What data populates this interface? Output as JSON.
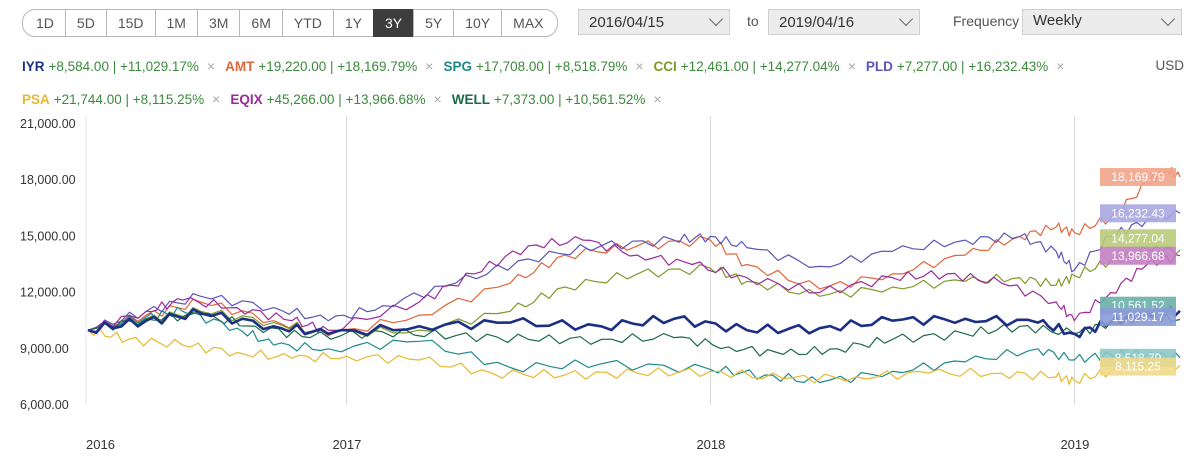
{
  "range_buttons": [
    "1D",
    "5D",
    "15D",
    "1M",
    "3M",
    "6M",
    "YTD",
    "1Y",
    "3Y",
    "5Y",
    "10Y",
    "MAX"
  ],
  "active_range": "3Y",
  "date_from": "2016/04/15",
  "date_to": "2019/04/16",
  "to_label": "to",
  "frequency_label": "Frequency",
  "frequency_value": "Weekly",
  "currency": "USD",
  "legend": [
    {
      "symbol": "IYR",
      "value": "+8,584.00 | +11,029.17%",
      "color": "#1b2f85"
    },
    {
      "symbol": "AMT",
      "value": "+19,220.00 | +18,169.79%",
      "color": "#e0653a"
    },
    {
      "symbol": "SPG",
      "value": "+17,708.00 | +8,518.79%",
      "color": "#1d8a8a"
    },
    {
      "symbol": "CCI",
      "value": "+12,461.00 | +14,277.04%",
      "color": "#7f9a2a"
    },
    {
      "symbol": "PLD",
      "value": "+7,277.00 | +16,232.43%",
      "color": "#5a55b8"
    },
    {
      "symbol": "PSA",
      "value": "+21,744.00 | +8,115.25%",
      "color": "#e8b830"
    },
    {
      "symbol": "EQIX",
      "value": "+45,266.00 | +13,966.68%",
      "color": "#9b2a9b"
    },
    {
      "symbol": "WELL",
      "value": "+7,373.00 | +10,561.52%",
      "color": "#1b6a4a"
    }
  ],
  "chart_data": {
    "type": "line",
    "x_ticks": [
      "2016",
      "2017",
      "2018",
      "2019"
    ],
    "y_ticks": [
      "6,000.00",
      "9,000.00",
      "12,000.00",
      "15,000.00",
      "18,000.00",
      "21,000.00"
    ],
    "ylim": [
      6000,
      21000
    ],
    "xlim": [
      2016.29,
      2019.29
    ],
    "grid": "vertical",
    "series": [
      {
        "name": "IYR",
        "color": "#1b2f85",
        "points": [
          [
            2016.29,
            10000
          ],
          [
            2016.45,
            10500
          ],
          [
            2016.6,
            10900
          ],
          [
            2016.8,
            10200
          ],
          [
            2016.95,
            9800
          ],
          [
            2017.2,
            10200
          ],
          [
            2017.45,
            10400
          ],
          [
            2017.7,
            10200
          ],
          [
            2017.9,
            10600
          ],
          [
            2018.1,
            10000
          ],
          [
            2018.3,
            10100
          ],
          [
            2018.5,
            10500
          ],
          [
            2018.7,
            10600
          ],
          [
            2018.9,
            10400
          ],
          [
            2019.0,
            9800
          ],
          [
            2019.1,
            10400
          ],
          [
            2019.2,
            10900
          ],
          [
            2019.29,
            11029
          ]
        ]
      },
      {
        "name": "AMT",
        "color": "#e0653a",
        "points": [
          [
            2016.29,
            10000
          ],
          [
            2016.45,
            10800
          ],
          [
            2016.6,
            11500
          ],
          [
            2016.8,
            10500
          ],
          [
            2016.95,
            9700
          ],
          [
            2017.2,
            10800
          ],
          [
            2017.45,
            12500
          ],
          [
            2017.6,
            14000
          ],
          [
            2017.8,
            14500
          ],
          [
            2018.0,
            14800
          ],
          [
            2018.1,
            13500
          ],
          [
            2018.3,
            12200
          ],
          [
            2018.5,
            13000
          ],
          [
            2018.7,
            14000
          ],
          [
            2018.85,
            15000
          ],
          [
            2018.95,
            15500
          ],
          [
            2019.0,
            15200
          ],
          [
            2019.1,
            16000
          ],
          [
            2019.2,
            17800
          ],
          [
            2019.25,
            18600
          ],
          [
            2019.29,
            18170
          ]
        ]
      },
      {
        "name": "SPG",
        "color": "#1d8a8a",
        "points": [
          [
            2016.29,
            10000
          ],
          [
            2016.45,
            10700
          ],
          [
            2016.55,
            11000
          ],
          [
            2016.7,
            10100
          ],
          [
            2016.8,
            9200
          ],
          [
            2016.95,
            9000
          ],
          [
            2017.2,
            9400
          ],
          [
            2017.45,
            8000
          ],
          [
            2017.7,
            8200
          ],
          [
            2018.0,
            7900
          ],
          [
            2018.15,
            7600
          ],
          [
            2018.3,
            7200
          ],
          [
            2018.5,
            7800
          ],
          [
            2018.7,
            8300
          ],
          [
            2018.9,
            9000
          ],
          [
            2019.0,
            8400
          ],
          [
            2019.1,
            8700
          ],
          [
            2019.2,
            8700
          ],
          [
            2019.29,
            8519
          ]
        ]
      },
      {
        "name": "CCI",
        "color": "#7f9a2a",
        "points": [
          [
            2016.29,
            10000
          ],
          [
            2016.45,
            10600
          ],
          [
            2016.6,
            11000
          ],
          [
            2016.8,
            10400
          ],
          [
            2016.95,
            9800
          ],
          [
            2017.2,
            10000
          ],
          [
            2017.45,
            11000
          ],
          [
            2017.6,
            12300
          ],
          [
            2017.8,
            13000
          ],
          [
            2018.0,
            13300
          ],
          [
            2018.1,
            12600
          ],
          [
            2018.3,
            11800
          ],
          [
            2018.5,
            12300
          ],
          [
            2018.7,
            12600
          ],
          [
            2018.85,
            12800
          ],
          [
            2018.95,
            12400
          ],
          [
            2019.0,
            12900
          ],
          [
            2019.1,
            13700
          ],
          [
            2019.2,
            14300
          ],
          [
            2019.29,
            14277
          ]
        ]
      },
      {
        "name": "PLD",
        "color": "#5a55b8",
        "points": [
          [
            2016.29,
            10000
          ],
          [
            2016.45,
            11000
          ],
          [
            2016.6,
            11800
          ],
          [
            2016.8,
            11200
          ],
          [
            2016.95,
            10500
          ],
          [
            2017.1,
            11300
          ],
          [
            2017.3,
            12500
          ],
          [
            2017.5,
            13800
          ],
          [
            2017.7,
            14500
          ],
          [
            2017.9,
            14800
          ],
          [
            2018.0,
            15000
          ],
          [
            2018.1,
            14400
          ],
          [
            2018.3,
            13400
          ],
          [
            2018.5,
            14200
          ],
          [
            2018.7,
            14800
          ],
          [
            2018.85,
            15000
          ],
          [
            2018.95,
            14200
          ],
          [
            2019.0,
            13200
          ],
          [
            2019.1,
            15000
          ],
          [
            2019.2,
            15900
          ],
          [
            2019.29,
            16232
          ]
        ]
      },
      {
        "name": "PSA",
        "color": "#e8b830",
        "points": [
          [
            2016.29,
            10000
          ],
          [
            2016.4,
            9500
          ],
          [
            2016.55,
            9200
          ],
          [
            2016.7,
            8800
          ],
          [
            2016.85,
            8500
          ],
          [
            2017.0,
            8600
          ],
          [
            2017.2,
            8400
          ],
          [
            2017.4,
            7700
          ],
          [
            2017.6,
            7600
          ],
          [
            2017.8,
            7700
          ],
          [
            2018.0,
            7800
          ],
          [
            2018.2,
            7400
          ],
          [
            2018.4,
            7500
          ],
          [
            2018.6,
            7700
          ],
          [
            2018.8,
            7700
          ],
          [
            2018.95,
            7500
          ],
          [
            2019.0,
            7300
          ],
          [
            2019.1,
            7800
          ],
          [
            2019.2,
            8300
          ],
          [
            2019.29,
            8115
          ]
        ]
      },
      {
        "name": "EQIX",
        "color": "#9b2a9b",
        "points": [
          [
            2016.29,
            10000
          ],
          [
            2016.45,
            11000
          ],
          [
            2016.55,
            11600
          ],
          [
            2016.7,
            11200
          ],
          [
            2016.85,
            10500
          ],
          [
            2016.95,
            10000
          ],
          [
            2017.2,
            11500
          ],
          [
            2017.35,
            13000
          ],
          [
            2017.5,
            14500
          ],
          [
            2017.65,
            14800
          ],
          [
            2017.8,
            14000
          ],
          [
            2017.95,
            13500
          ],
          [
            2018.1,
            12800
          ],
          [
            2018.3,
            12000
          ],
          [
            2018.5,
            12800
          ],
          [
            2018.65,
            13000
          ],
          [
            2018.8,
            12500
          ],
          [
            2018.95,
            11500
          ],
          [
            2019.0,
            10500
          ],
          [
            2019.1,
            12000
          ],
          [
            2019.2,
            13500
          ],
          [
            2019.29,
            13967
          ]
        ]
      },
      {
        "name": "WELL",
        "color": "#1b6a4a",
        "points": [
          [
            2016.29,
            10000
          ],
          [
            2016.45,
            10600
          ],
          [
            2016.6,
            10800
          ],
          [
            2016.75,
            10200
          ],
          [
            2016.9,
            9600
          ],
          [
            2017.1,
            9900
          ],
          [
            2017.3,
            9700
          ],
          [
            2017.5,
            9500
          ],
          [
            2017.7,
            9500
          ],
          [
            2017.9,
            9600
          ],
          [
            2018.05,
            9100
          ],
          [
            2018.2,
            8700
          ],
          [
            2018.35,
            9000
          ],
          [
            2018.5,
            9500
          ],
          [
            2018.7,
            9800
          ],
          [
            2018.85,
            10200
          ],
          [
            2019.0,
            9800
          ],
          [
            2019.1,
            10400
          ],
          [
            2019.2,
            10700
          ],
          [
            2019.29,
            10562
          ]
        ]
      }
    ],
    "end_tags": [
      {
        "label": "18,169.79",
        "color": "#f2a48a",
        "y": 18170
      },
      {
        "label": "16,232.43",
        "color": "#a9a7e0",
        "y": 16232
      },
      {
        "label": "14,277.04",
        "color": "#b9cb7a",
        "y": 14900
      },
      {
        "label": "13,966.68",
        "color": "#c27fc2",
        "y": 13967
      },
      {
        "label": "10,561.52",
        "color": "#6ab0a8",
        "y": 11300
      },
      {
        "label": "11,029.17",
        "color": "#8a9ad6",
        "y": 10700
      },
      {
        "label": "8,518.79",
        "color": "#8cc8c8",
        "y": 8519
      },
      {
        "label": "8,115.25",
        "color": "#efd98a",
        "y": 8050
      }
    ]
  }
}
